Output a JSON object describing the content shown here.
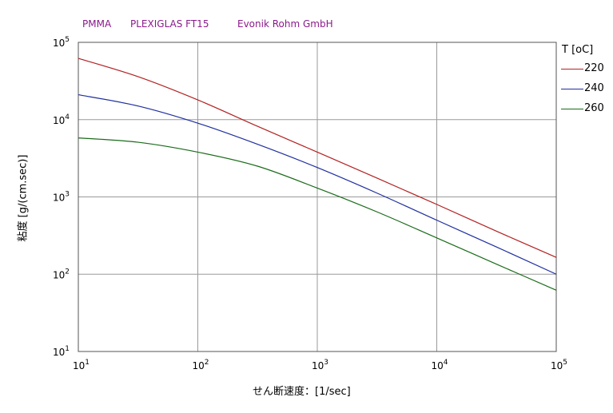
{
  "header": {
    "material": "PMMA",
    "grade": "PLEXIGLAS FT15",
    "maker": "Evonik Rohm GmbH",
    "text_color": "#8b1a8b"
  },
  "chart_data": {
    "type": "line",
    "xscale": "log",
    "yscale": "log",
    "xlabel": "せん断速度：[1/sec]",
    "ylabel": "粘度 [g/(cm.sec)]",
    "xlim": [
      10,
      100000
    ],
    "ylim": [
      10,
      100000
    ],
    "grid": true,
    "x_ticks": [
      {
        "base": "10",
        "exp": "1"
      },
      {
        "base": "10",
        "exp": "2"
      },
      {
        "base": "10",
        "exp": "3"
      },
      {
        "base": "10",
        "exp": "4"
      },
      {
        "base": "10",
        "exp": "5"
      }
    ],
    "y_ticks": [
      {
        "base": "10",
        "exp": "5"
      },
      {
        "base": "10",
        "exp": "4"
      },
      {
        "base": "10",
        "exp": "3"
      },
      {
        "base": "10",
        "exp": "2"
      },
      {
        "base": "10",
        "exp": "1"
      }
    ],
    "legend": {
      "title": "T [oC]",
      "placement": "right"
    },
    "x": [
      10,
      31.6,
      100,
      316,
      1000,
      3162,
      10000,
      31623,
      100000
    ],
    "series": [
      {
        "name": "220",
        "color": "#b22222",
        "values": [
          62000,
          36000,
          18000,
          8200,
          3800,
          1750,
          800,
          360,
          165
        ]
      },
      {
        "name": "240",
        "color": "#1f2f9f",
        "values": [
          21000,
          15000,
          9000,
          4800,
          2400,
          1120,
          500,
          225,
          100
        ]
      },
      {
        "name": "260",
        "color": "#1a6b1a",
        "values": [
          5800,
          5100,
          3800,
          2500,
          1300,
          640,
          295,
          135,
          62
        ]
      }
    ]
  }
}
